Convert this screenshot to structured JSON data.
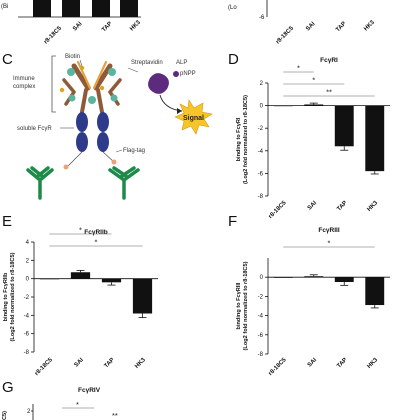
{
  "panel_labels": {
    "C": "C",
    "D": "D",
    "E": "E",
    "F": "F",
    "G": "G"
  },
  "diagram": {
    "labels": {
      "biotin": "Biotin",
      "streptavidin": "Streptavidin",
      "alp": "ALP",
      "pnpp": "pNPP",
      "immune_complex": "Immune\ncomplex",
      "signal": "Signal",
      "soluble_fcyr": "soluble FcγR",
      "flag_tag": "Flag-tag"
    },
    "colors": {
      "antibody_brown": "#8d5a3a",
      "antibody_orange": "#e8a040",
      "antigen_teal": "#5ab4a0",
      "fcyr_navy": "#2e3b8a",
      "capture_green": "#1e8a4a",
      "flag_peach": "#f0a078",
      "biotin_gold": "#d9a520",
      "streptavidin_purple": "#5e2a7e",
      "signal_yellow": "#f7c52a"
    }
  },
  "top_strip": {
    "left_ylabel_fragment": "(Bi",
    "right_ylabel_fragment": "(Lo",
    "categories": [
      "r8-18C5",
      "SAI",
      "TAP",
      "HK3"
    ],
    "right_tick": "-6"
  },
  "chart_data": [
    {
      "panel": "D",
      "type": "bar",
      "title": "FcγRI",
      "categories": [
        "r8-18C5",
        "SAI",
        "TAP",
        "HK3"
      ],
      "values": [
        0,
        0.1,
        -3.6,
        -5.8
      ],
      "errors": [
        0,
        0.12,
        0.35,
        0.25
      ],
      "ylim": [
        -8,
        2
      ],
      "yticks": [
        2,
        0,
        -2,
        -4,
        -6,
        -8
      ],
      "ylabel": "binding to FcγRI\n(Log2 fold normalized to r8-18C5)",
      "significance": [
        {
          "from": 0,
          "to": 1,
          "label": "*"
        },
        {
          "from": 0,
          "to": 2,
          "label": "*"
        },
        {
          "from": 0,
          "to": 3,
          "label": "**"
        }
      ]
    },
    {
      "panel": "E",
      "type": "bar",
      "title": "FcγRIIb",
      "categories": [
        "r8-18C5",
        "SAI",
        "TAP",
        "HK3"
      ],
      "values": [
        0,
        0.7,
        -0.4,
        -3.8
      ],
      "errors": [
        0,
        0.2,
        0.3,
        0.45
      ],
      "ylim": [
        -8,
        4
      ],
      "yticks": [
        4,
        2,
        0,
        -2,
        -4,
        -6,
        -8
      ],
      "ylabel": "binding to FcγRIIb\n(Log2 fold normalized to r8-18C5)",
      "significance": [
        {
          "from": 0,
          "to": 2,
          "label": "*"
        },
        {
          "from": 0,
          "to": 3,
          "label": "*"
        }
      ]
    },
    {
      "panel": "F",
      "type": "bar",
      "title": "FcγRIII",
      "categories": [
        "r8-18C5",
        "SAI",
        "TAP",
        "HK3"
      ],
      "values": [
        0,
        0.1,
        -0.5,
        -2.9
      ],
      "errors": [
        0,
        0.15,
        0.35,
        0.3
      ],
      "ylim": [
        -8,
        2
      ],
      "yticks": [
        0,
        -2,
        -4,
        -6,
        -8
      ],
      "ylabel": "binding to FcγRIII\n(Log2 fold normalized to r8-18C5)",
      "significance": [
        {
          "from": 0,
          "to": 3,
          "label": "*"
        }
      ]
    },
    {
      "panel": "G",
      "type": "bar",
      "title": "FcγRIV",
      "yticks": [
        2
      ],
      "ylabel_fragment": "C5)",
      "significance": [
        {
          "label": "*"
        },
        {
          "label": "**"
        }
      ]
    }
  ]
}
